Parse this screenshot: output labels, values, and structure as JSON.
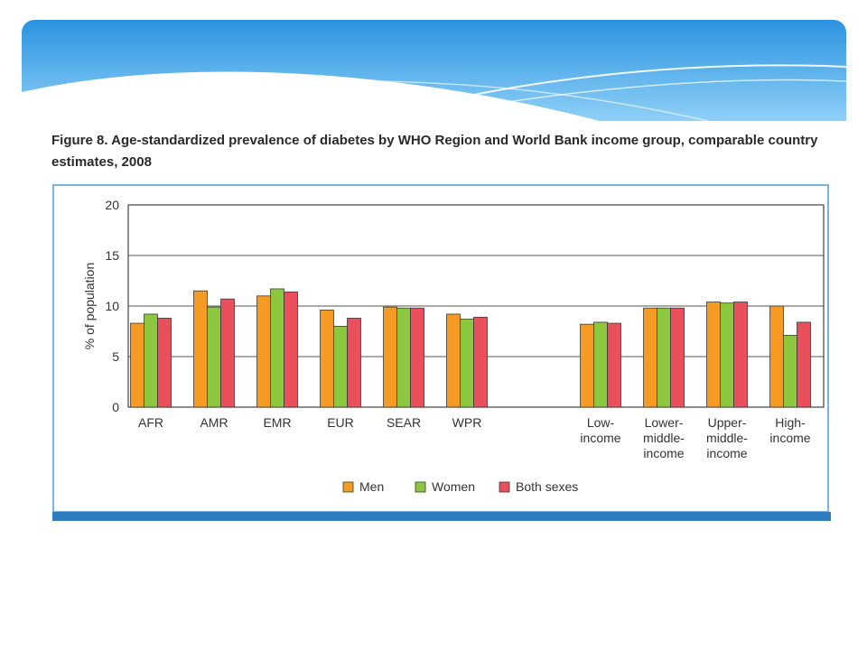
{
  "figure": {
    "title": "Figure 8. Age-standardized prevalence of diabetes by WHO Region and World Bank income group, comparable country estimates, 2008"
  },
  "colors": {
    "men": "#f59a23",
    "women": "#8dc63f",
    "both": "#e9505c",
    "frame": "#79b3e0",
    "frame_bar": "#2f7cc0",
    "banner_top": "#2b93e0",
    "banner_bottom": "#8fd0f7"
  },
  "chart_data": {
    "type": "bar",
    "title": "Figure 8. Age-standardized prevalence of diabetes by WHO Region and World Bank income group, comparable country estimates, 2008",
    "ylabel": "% of population",
    "xlabel": "",
    "ylim": [
      0,
      20
    ],
    "yticks": [
      "0",
      "5",
      "10",
      "15",
      "20"
    ],
    "grid": true,
    "legend_position": "bottom",
    "categories": [
      "AFR",
      "AMR",
      "EMR",
      "EUR",
      "SEAR",
      "WPR",
      "Low-\nincome",
      "Lower-\nmiddle-\nincome",
      "Upper-\nmiddle-\nincome",
      "High-\nincome"
    ],
    "series": [
      {
        "name": "Men",
        "values": [
          8.3,
          11.5,
          11.0,
          9.6,
          9.9,
          9.2,
          8.2,
          9.8,
          10.4,
          10.0
        ]
      },
      {
        "name": "Women",
        "values": [
          9.2,
          9.9,
          11.7,
          8.0,
          9.8,
          8.7,
          8.4,
          9.8,
          10.3,
          7.1
        ]
      },
      {
        "name": "Both sexes",
        "values": [
          8.8,
          10.7,
          11.4,
          8.8,
          9.8,
          8.9,
          8.3,
          9.8,
          10.4,
          8.4
        ]
      }
    ]
  }
}
